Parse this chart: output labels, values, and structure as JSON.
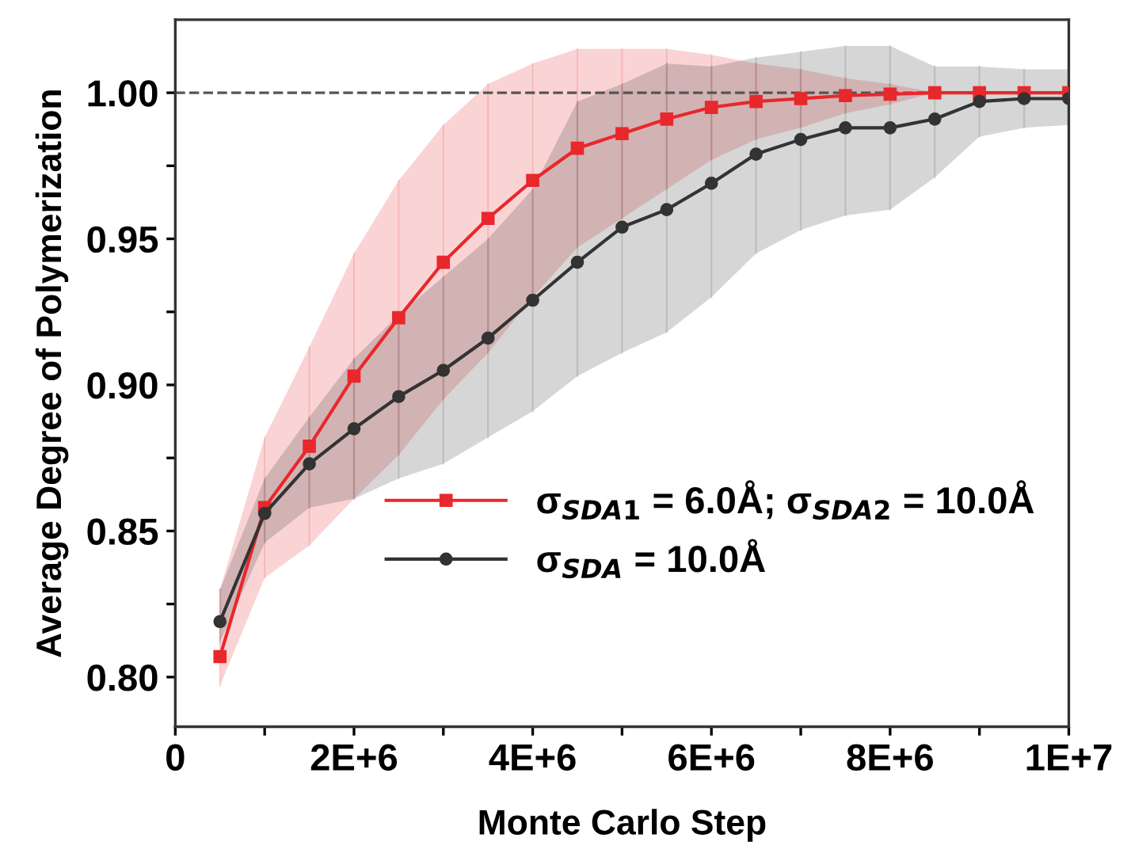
{
  "chart_data": {
    "type": "line",
    "xlabel": "Monte Carlo Step",
    "ylabel": "Average Degree of Polymerization",
    "x": [
      500000,
      1000000,
      1500000,
      2000000,
      2500000,
      3000000,
      3500000,
      4000000,
      4500000,
      5000000,
      5500000,
      6000000,
      6500000,
      7000000,
      7500000,
      8000000,
      8500000,
      9000000,
      9500000,
      10000000
    ],
    "series": [
      {
        "name": "σ$_{SDA1}$ = 6.0Å; σ$_{SDA2}$ = 10.0Å",
        "color": "#e8282b",
        "marker": "square",
        "values": [
          0.807,
          0.858,
          0.879,
          0.903,
          0.923,
          0.942,
          0.957,
          0.97,
          0.981,
          0.986,
          0.991,
          0.995,
          0.997,
          0.998,
          0.999,
          0.9995,
          1.0,
          1.0,
          1.0,
          1.0
        ],
        "lower": [
          0.797,
          0.834,
          0.845,
          0.861,
          0.876,
          0.895,
          0.911,
          0.93,
          0.947,
          0.957,
          0.967,
          0.977,
          0.984,
          0.988,
          0.993,
          0.996,
          1.0,
          1.0,
          1.0,
          1.0
        ],
        "upper": [
          0.83,
          0.882,
          0.913,
          0.945,
          0.97,
          0.989,
          1.003,
          1.01,
          1.015,
          1.015,
          1.015,
          1.013,
          1.01,
          1.008,
          1.005,
          1.003,
          1.0,
          1.0,
          1.0,
          1.0
        ],
        "errors": [
          [
            0.797,
            0.83
          ],
          [
            0.834,
            0.882
          ],
          [
            0.845,
            0.913
          ],
          [
            0.861,
            0.945
          ],
          [
            0.876,
            0.97
          ],
          [
            0.895,
            0.989
          ],
          [
            0.911,
            1.003
          ],
          [
            0.93,
            1.01
          ],
          [
            0.947,
            1.015
          ],
          [
            0.957,
            1.015
          ],
          [
            0.967,
            1.015
          ],
          [
            0.977,
            1.013
          ],
          [
            0.984,
            1.01
          ],
          [
            0.988,
            1.008
          ],
          [
            0.993,
            1.005
          ],
          [
            0.996,
            1.003
          ],
          null,
          null,
          null,
          null
        ]
      },
      {
        "name": "σ$_{SDA}$ = 10.0Å",
        "color": "#333333",
        "marker": "circle",
        "values": [
          0.819,
          0.856,
          0.873,
          0.885,
          0.896,
          0.905,
          0.916,
          0.929,
          0.942,
          0.954,
          0.96,
          0.969,
          0.979,
          0.984,
          0.988,
          0.988,
          0.991,
          0.997,
          0.998,
          0.998
        ],
        "lower": [
          0.812,
          0.846,
          0.858,
          0.861,
          0.868,
          0.873,
          0.882,
          0.891,
          0.903,
          0.911,
          0.918,
          0.93,
          0.945,
          0.953,
          0.958,
          0.96,
          0.971,
          0.985,
          0.988,
          0.989
        ],
        "upper": [
          0.83,
          0.868,
          0.889,
          0.909,
          0.924,
          0.937,
          0.95,
          0.967,
          0.997,
          1.003,
          1.01,
          1.009,
          1.012,
          1.014,
          1.016,
          1.016,
          1.009,
          1.009,
          1.008,
          1.008
        ],
        "errors": [
          [
            0.812,
            0.83
          ],
          [
            0.846,
            0.868
          ],
          [
            0.858,
            0.889
          ],
          [
            0.861,
            0.909
          ],
          [
            0.868,
            0.924
          ],
          [
            0.873,
            0.937
          ],
          [
            0.882,
            0.95
          ],
          [
            0.891,
            0.967
          ],
          [
            0.903,
            0.997
          ],
          [
            0.911,
            1.003
          ],
          [
            0.918,
            1.01
          ],
          [
            0.93,
            1.009
          ],
          [
            0.945,
            1.012
          ],
          [
            0.953,
            1.014
          ],
          [
            0.958,
            1.016
          ],
          [
            0.96,
            1.016
          ],
          [
            0.971,
            1.009
          ],
          [
            0.985,
            1.009
          ],
          [
            0.988,
            1.008
          ],
          [
            0.989,
            1.008
          ]
        ]
      }
    ],
    "xlim": [
      0,
      10000000
    ],
    "xticks": [
      {
        "value": 0,
        "label": "0"
      },
      {
        "value": 1000000,
        "label": null
      },
      {
        "value": 2000000,
        "label": "2E+6"
      },
      {
        "value": 3000000,
        "label": null
      },
      {
        "value": 4000000,
        "label": "4E+6"
      },
      {
        "value": 5000000,
        "label": null
      },
      {
        "value": 6000000,
        "label": "6E+6"
      },
      {
        "value": 7000000,
        "label": null
      },
      {
        "value": 8000000,
        "label": "8E+6"
      },
      {
        "value": 9000000,
        "label": null
      },
      {
        "value": 10000000,
        "label": "1E+7"
      }
    ],
    "ylim": [
      0.783,
      1.025
    ],
    "yticks": [
      {
        "value": 0.8,
        "label": "0.80"
      },
      {
        "value": 0.825,
        "label": null
      },
      {
        "value": 0.85,
        "label": "0.85"
      },
      {
        "value": 0.875,
        "label": null
      },
      {
        "value": 0.9,
        "label": "0.90"
      },
      {
        "value": 0.925,
        "label": null
      },
      {
        "value": 0.95,
        "label": "0.95"
      },
      {
        "value": 0.975,
        "label": null
      },
      {
        "value": 1.0,
        "label": "1.00"
      }
    ],
    "ref_lines": [
      {
        "axis": "y",
        "value": 1.0,
        "color": "#555555",
        "line_style": "dashed"
      }
    ],
    "legend": "bottom right",
    "grid": false,
    "line_style": "solid"
  }
}
